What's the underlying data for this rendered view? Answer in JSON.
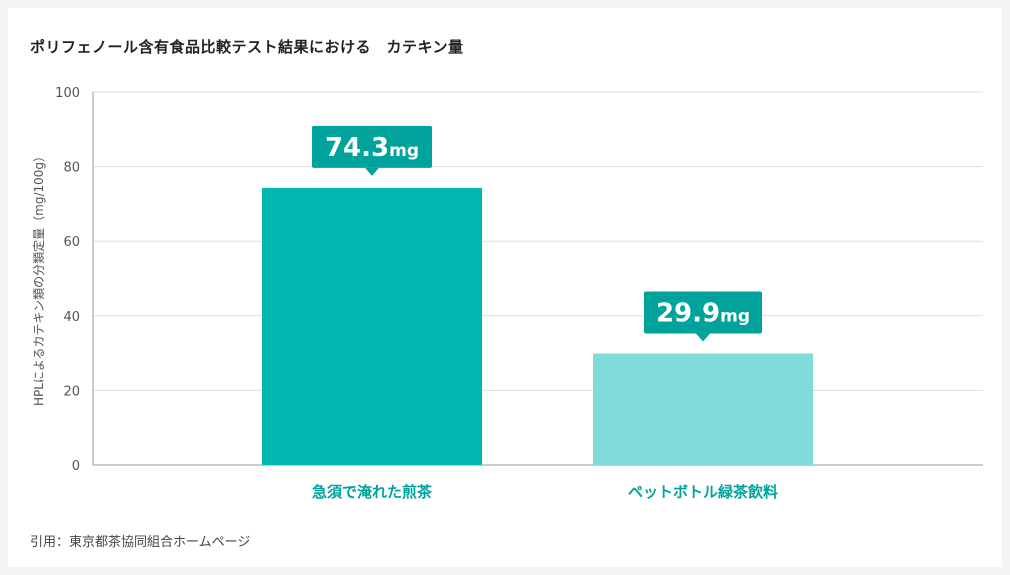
{
  "title": "ポリフェノール含有食品比較テスト結果における　カテキン量",
  "source": "引用：東京都茶協同組合ホームページ",
  "chart_data": {
    "type": "bar",
    "ylabel": "HPLによるカテキン類の分類定量（mg/100g）",
    "ylim": [
      0,
      100
    ],
    "yticks": [
      0,
      20,
      40,
      60,
      80,
      100
    ],
    "grid": true,
    "categories": [
      "急須で淹れた煎茶",
      "ペットボトル緑茶飲料"
    ],
    "values": [
      74.3,
      29.9
    ],
    "unit": "mg",
    "data_labels": [
      "74.3",
      "29.9"
    ],
    "colors": {
      "bars": [
        "#00b8b0",
        "#80dcd8"
      ],
      "label_box": "#00a39c",
      "category_text": "#00a39c",
      "grid": "#dddddd",
      "axis": "#999999",
      "tick_text": "#555555"
    }
  }
}
